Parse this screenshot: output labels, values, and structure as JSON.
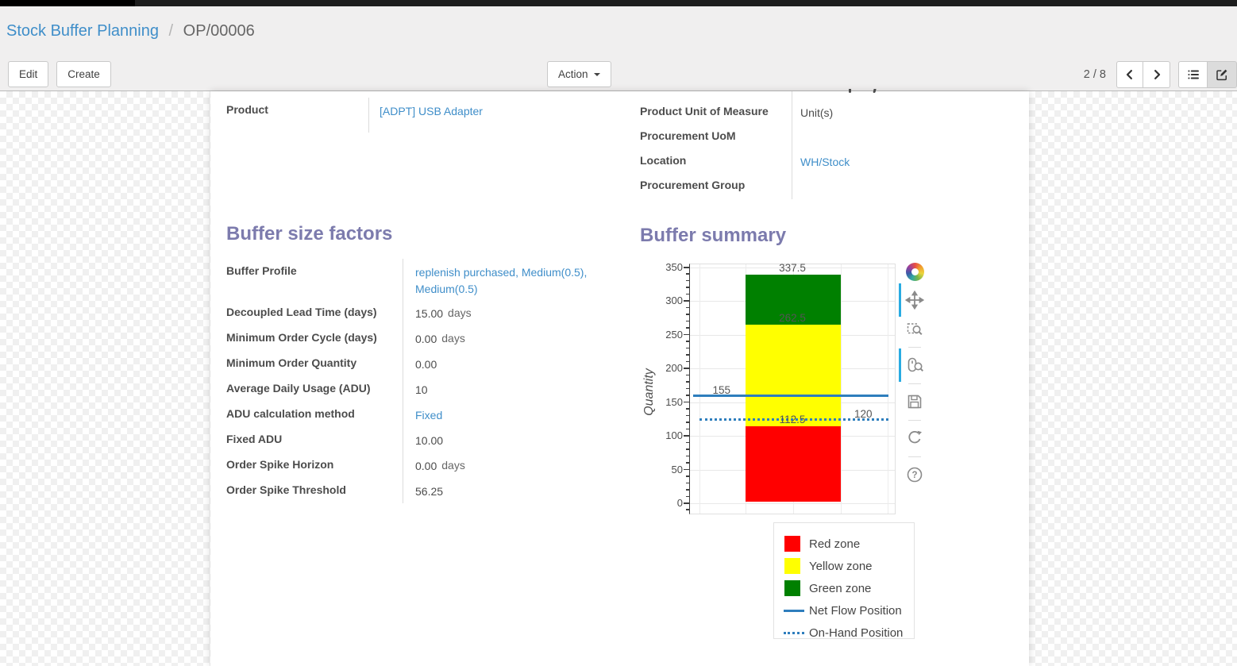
{
  "breadcrumb": {
    "parent": "Stock Buffer Planning",
    "separator": "/",
    "current": "OP/00006"
  },
  "header": {
    "edit_label": "Edit",
    "create_label": "Create",
    "action_label": "Action",
    "pager": "2 / 8"
  },
  "form": {
    "product": {
      "label": "Product",
      "value": "[ADPT] USB Adapter",
      "link": true
    },
    "right_fields": [
      {
        "label": "Product Unit of Measure",
        "value": "Unit(s)",
        "link": false
      },
      {
        "label": "Procurement UoM",
        "value": "",
        "link": false
      },
      {
        "label": "Location",
        "value": "WH/Stock",
        "link": true
      },
      {
        "label": "Procurement Group",
        "value": "",
        "link": false
      }
    ],
    "factors": {
      "title": "Buffer size factors",
      "rows": [
        {
          "label": "Buffer Profile",
          "value": "replenish purchased, Medium(0.5), Medium(0.5)",
          "link": true
        },
        {
          "label": "Decoupled Lead Time (days)",
          "value": "15.00",
          "suffix": "days"
        },
        {
          "label": "Minimum Order Cycle (days)",
          "value": "0.00",
          "suffix": "days"
        },
        {
          "label": "Minimum Order Quantity",
          "value": "0.00"
        },
        {
          "label": "Average Daily Usage (ADU)",
          "value": "10"
        },
        {
          "label": "ADU calculation method",
          "value": "Fixed",
          "link": true
        },
        {
          "label": "Fixed ADU",
          "value": "10.00"
        },
        {
          "label": "Order Spike Horizon",
          "value": "0.00",
          "suffix": "days"
        },
        {
          "label": "Order Spike Threshold",
          "value": "56.25"
        }
      ]
    },
    "summary_title": "Buffer summary"
  },
  "chart_data": {
    "type": "bar",
    "title": "Buffer summary",
    "xlabel": "",
    "ylabel": "Quantity",
    "ylim": [
      0,
      350
    ],
    "yticks": [
      0,
      50,
      100,
      150,
      200,
      250,
      300,
      350
    ],
    "grid": true,
    "zones": [
      {
        "name": "Red zone",
        "from": 0,
        "to": 112.5,
        "color": "#ff0000"
      },
      {
        "name": "Yellow zone",
        "from": 112.5,
        "to": 262.5,
        "color": "#ffff00"
      },
      {
        "name": "Green zone",
        "from": 262.5,
        "to": 337.5,
        "color": "#008000"
      }
    ],
    "lines": [
      {
        "name": "Net Flow Position",
        "value": 155,
        "style": "solid",
        "color": "#2e7ebd"
      },
      {
        "name": "On-Hand Position",
        "value": 120,
        "style": "dotted",
        "color": "#2e7ebd"
      }
    ],
    "annotations": [
      {
        "text": "337.5",
        "value": 337.5,
        "x_pct": 50
      },
      {
        "text": "262.5",
        "value": 262.5,
        "x_pct": 50
      },
      {
        "text": "155",
        "value": 155,
        "x_pct": 15.4
      },
      {
        "text": "112.5",
        "value": 112.5,
        "x_pct": 50
      },
      {
        "text": "120",
        "value": 120,
        "x_pct": 84.6
      }
    ],
    "legend_position": "below-right",
    "legend_items": [
      {
        "label": "Red zone",
        "swatch": "rect",
        "color": "#ff0000"
      },
      {
        "label": "Yellow zone",
        "swatch": "rect",
        "color": "#ffff00"
      },
      {
        "label": "Green zone",
        "swatch": "rect",
        "color": "#008000"
      },
      {
        "label": "Net Flow Position",
        "swatch": "line",
        "color": "#2e7ebd"
      },
      {
        "label": "On-Hand Position",
        "swatch": "dots",
        "color": "#2e7ebd"
      }
    ],
    "toolbar": {
      "tools": [
        "bokeh-logo",
        "pan",
        "box-zoom",
        "wheel-zoom",
        "save",
        "reset",
        "help"
      ],
      "active_tools": [
        "pan",
        "wheel-zoom"
      ],
      "active_color": "#29abe2"
    }
  }
}
